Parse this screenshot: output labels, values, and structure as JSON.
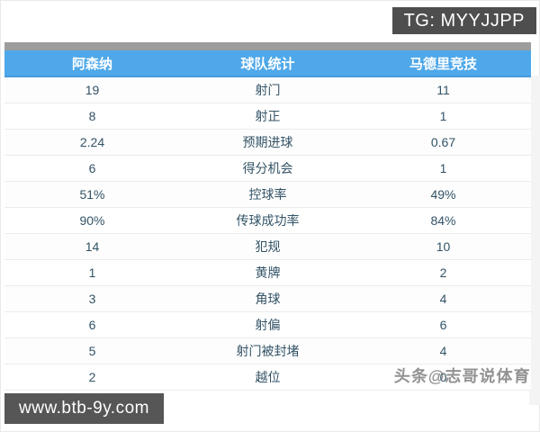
{
  "badges": {
    "tg_label": "TG: MYYJJPP",
    "site_label": "www.btb-9y.com"
  },
  "watermark_text": "头条@志哥说体育",
  "table": {
    "header": {
      "home_team": "阿森纳",
      "title": "球队统计",
      "away_team": "马德里竞技"
    },
    "rows": [
      {
        "home": "19",
        "label": "射门",
        "away": "11"
      },
      {
        "home": "8",
        "label": "射正",
        "away": "1"
      },
      {
        "home": "2.24",
        "label": "预期进球",
        "away": "0.67"
      },
      {
        "home": "6",
        "label": "得分机会",
        "away": "1"
      },
      {
        "home": "51%",
        "label": "控球率",
        "away": "49%"
      },
      {
        "home": "90%",
        "label": "传球成功率",
        "away": "84%"
      },
      {
        "home": "14",
        "label": "犯规",
        "away": "10"
      },
      {
        "home": "1",
        "label": "黄牌",
        "away": "2"
      },
      {
        "home": "3",
        "label": "角球",
        "away": "4"
      },
      {
        "home": "6",
        "label": "射偏",
        "away": "6"
      },
      {
        "home": "5",
        "label": "射门被封堵",
        "away": "4"
      },
      {
        "home": "2",
        "label": "越位",
        "away": "0"
      }
    ]
  },
  "colors": {
    "header_bg": "#4fa8e9",
    "strip_bg": "#9d9d9d",
    "badge_bg": "#4e4e4e",
    "row_text": "#335366"
  }
}
